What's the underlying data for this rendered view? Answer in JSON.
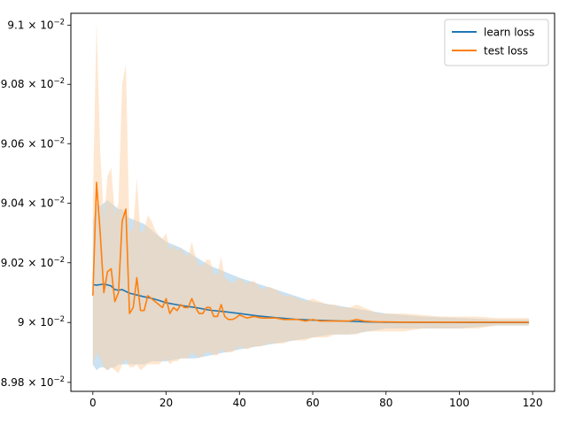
{
  "chart_data": {
    "type": "line",
    "title": "",
    "xlabel": "",
    "ylabel": "",
    "y_scale": "log",
    "xlim": [
      -6,
      126
    ],
    "ylim": [
      0.08977,
      0.09104
    ],
    "x_ticks": [
      0,
      20,
      40,
      60,
      80,
      100,
      120
    ],
    "y_ticks": [
      {
        "value": 0.0898,
        "mantissa": "8.98",
        "exp": "−2"
      },
      {
        "value": 0.09,
        "mantissa": "9",
        "exp": "−2"
      },
      {
        "value": 0.0902,
        "mantissa": "9.02",
        "exp": "−2"
      },
      {
        "value": 0.0904,
        "mantissa": "9.04",
        "exp": "−2"
      },
      {
        "value": 0.0906,
        "mantissa": "9.06",
        "exp": "−2"
      },
      {
        "value": 0.0908,
        "mantissa": "9.08",
        "exp": "−2"
      },
      {
        "value": 0.091,
        "mantissa": "9.1",
        "exp": "−2"
      }
    ],
    "grid": false,
    "legend_position": "top-right",
    "series": [
      {
        "name": "learn loss",
        "color": "#1f77b4",
        "band_color": "#9ecae9",
        "x": [
          0,
          1,
          2,
          3,
          4,
          5,
          6,
          7,
          8,
          9,
          10,
          12,
          14,
          16,
          18,
          20,
          24,
          28,
          32,
          36,
          40,
          45,
          50,
          55,
          60,
          65,
          70,
          75,
          80,
          90,
          100,
          110,
          119
        ],
        "y": [
          0.090127,
          0.090125,
          0.090127,
          0.090128,
          0.090126,
          0.090122,
          0.09011,
          0.090108,
          0.09011,
          0.090104,
          0.090098,
          0.090092,
          0.090086,
          0.090081,
          0.090074,
          0.090066,
          0.090057,
          0.09005,
          0.090041,
          0.090036,
          0.09003,
          0.090022,
          0.090016,
          0.090011,
          0.090008,
          0.090006,
          0.090004,
          0.090002,
          0.090001,
          0.0900005,
          0.0900002,
          0.0900001,
          0.0900001
        ],
        "upper": [
          0.09034,
          0.0904,
          0.09039,
          0.0904,
          0.09041,
          0.0904,
          0.09039,
          0.09038,
          0.09038,
          0.09036,
          0.09035,
          0.09034,
          0.09033,
          0.09031,
          0.09029,
          0.09027,
          0.09025,
          0.09022,
          0.09019,
          0.09017,
          0.09015,
          0.09013,
          0.09011,
          0.09009,
          0.09007,
          0.09006,
          0.09005,
          0.09004,
          0.09003,
          0.09002,
          0.090015,
          0.09001,
          0.09001
        ],
        "lower": [
          0.08986,
          0.08984,
          0.08985,
          0.08985,
          0.08984,
          0.08985,
          0.08985,
          0.08986,
          0.08986,
          0.08986,
          0.08986,
          0.08986,
          0.08986,
          0.08987,
          0.08987,
          0.08987,
          0.08988,
          0.08988,
          0.08989,
          0.0899,
          0.08991,
          0.08992,
          0.08993,
          0.08994,
          0.08995,
          0.08996,
          0.08996,
          0.08997,
          0.08998,
          0.08998,
          0.08998,
          0.08999,
          0.08999
        ]
      },
      {
        "name": "test loss",
        "color": "#ff7f0e",
        "band_color": "#fdd0a2",
        "x": [
          0,
          1,
          2,
          3,
          4,
          5,
          6,
          7,
          8,
          9,
          10,
          11,
          12,
          13,
          14,
          15,
          16,
          17,
          18,
          19,
          20,
          21,
          22,
          23,
          24,
          25,
          26,
          27,
          28,
          29,
          30,
          31,
          32,
          33,
          34,
          35,
          36,
          37,
          38,
          39,
          40,
          42,
          44,
          46,
          48,
          50,
          52,
          54,
          56,
          58,
          60,
          62,
          64,
          66,
          68,
          70,
          72,
          74,
          76,
          78,
          80,
          85,
          90,
          95,
          100,
          105,
          110,
          115,
          119
        ],
        "y": [
          0.09009,
          0.09047,
          0.0903,
          0.0901,
          0.09017,
          0.09018,
          0.09007,
          0.0901,
          0.09034,
          0.09038,
          0.09003,
          0.09005,
          0.09015,
          0.09004,
          0.09004,
          0.09009,
          0.09008,
          0.09007,
          0.09006,
          0.09005,
          0.09008,
          0.09003,
          0.09005,
          0.09004,
          0.09006,
          0.09005,
          0.09005,
          0.09008,
          0.09005,
          0.09003,
          0.09003,
          0.09005,
          0.09005,
          0.09002,
          0.09002,
          0.09006,
          0.09002,
          0.09001,
          0.09001,
          0.090015,
          0.090025,
          0.090015,
          0.09002,
          0.090015,
          0.090015,
          0.090015,
          0.09001,
          0.09001,
          0.09001,
          0.090005,
          0.09001,
          0.090005,
          0.090005,
          0.090005,
          0.090005,
          0.090005,
          0.09001,
          0.090005,
          0.090003,
          0.090002,
          0.090002,
          0.090001,
          0.090001,
          0.090001,
          0.090001,
          0.090001,
          0.090001,
          0.090001,
          0.090001
        ],
        "upper": [
          0.09041,
          0.09101,
          0.09058,
          0.09034,
          0.09049,
          0.09052,
          0.09036,
          0.0904,
          0.0908,
          0.09087,
          0.0903,
          0.09032,
          0.09048,
          0.0903,
          0.09031,
          0.09036,
          0.09034,
          0.09031,
          0.09029,
          0.09028,
          0.0903,
          0.09024,
          0.09026,
          0.09024,
          0.09025,
          0.09023,
          0.09022,
          0.09027,
          0.09022,
          0.09019,
          0.09019,
          0.09021,
          0.09021,
          0.09016,
          0.09016,
          0.09022,
          0.09015,
          0.09014,
          0.09013,
          0.09014,
          0.09015,
          0.09013,
          0.09014,
          0.09011,
          0.09012,
          0.09011,
          0.09009,
          0.09009,
          0.09008,
          0.09007,
          0.09008,
          0.09007,
          0.09006,
          0.09006,
          0.09005,
          0.09005,
          0.09006,
          0.09005,
          0.09004,
          0.09003,
          0.09003,
          0.09003,
          0.090025,
          0.09002,
          0.09002,
          0.09002,
          0.090015,
          0.090015,
          0.090015
        ],
        "lower": [
          0.08985,
          0.0899,
          0.08988,
          0.08985,
          0.08984,
          0.08985,
          0.08984,
          0.08983,
          0.08986,
          0.08988,
          0.08985,
          0.08985,
          0.08986,
          0.08984,
          0.08985,
          0.08986,
          0.08986,
          0.08986,
          0.08986,
          0.08987,
          0.08988,
          0.08986,
          0.08987,
          0.08987,
          0.08988,
          0.08988,
          0.08988,
          0.0899,
          0.08989,
          0.08988,
          0.08989,
          0.0899,
          0.0899,
          0.08989,
          0.08989,
          0.08991,
          0.0899,
          0.0899,
          0.0899,
          0.08991,
          0.08992,
          0.08991,
          0.08992,
          0.08992,
          0.08993,
          0.08993,
          0.08993,
          0.08994,
          0.08994,
          0.08994,
          0.08995,
          0.08995,
          0.08995,
          0.08996,
          0.08996,
          0.08996,
          0.08996,
          0.08997,
          0.08997,
          0.08997,
          0.08997,
          0.08997,
          0.08998,
          0.08998,
          0.08998,
          0.08998,
          0.08999,
          0.08999,
          0.08999
        ]
      }
    ]
  }
}
